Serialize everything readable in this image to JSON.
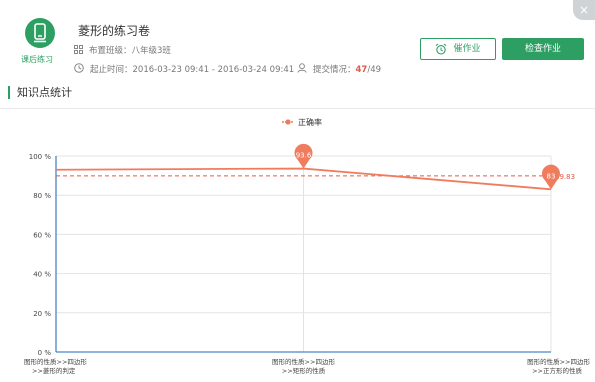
{
  "header": {
    "close_symbol": "×",
    "app_label": "课后练习",
    "title": "菱形的练习卷",
    "class_label": "布置班级：八年级3班",
    "time_label": "起止时间：2016-03-23 09:41 - 2016-03-24 09:41",
    "submit_label": "提交情况：",
    "submit_done": "47",
    "submit_total": "/49",
    "remind_button": "催作业",
    "check_button": "检查作业",
    "accent_color": "#2e9f63",
    "icons": {
      "app": "phone-icon",
      "class": "grid-icon",
      "time": "clock-icon",
      "submit": "user-icon",
      "remind": "alarm-clock-icon",
      "close": "close-icon"
    }
  },
  "section": {
    "title": "知识点统计"
  },
  "chart_data": {
    "type": "line",
    "legend": "正确率",
    "legend_position": "top-center",
    "categories": [
      [
        "图形的性质>>四边形",
        ">>菱形的判定"
      ],
      [
        "图形的性质>>四边形",
        ">>矩形的性质"
      ],
      [
        "图形的性质>>四边形",
        ">>正方形的性质"
      ]
    ],
    "series": [
      {
        "name": "正确率",
        "values": [
          93,
          93.6,
          83
        ],
        "color": "#f07c5e",
        "point_labels": [
          "",
          "93.6",
          "83"
        ]
      }
    ],
    "average": {
      "value": 89.83,
      "label": "89.83",
      "color": "#e25a4a",
      "style": "dashed"
    },
    "ylim": [
      0,
      100
    ],
    "yticks": [
      0,
      20,
      40,
      60,
      80,
      100
    ],
    "ytick_labels": [
      "0 %",
      "20 %",
      "40 %",
      "60 %",
      "80 %",
      "100 %"
    ],
    "grid": true
  }
}
